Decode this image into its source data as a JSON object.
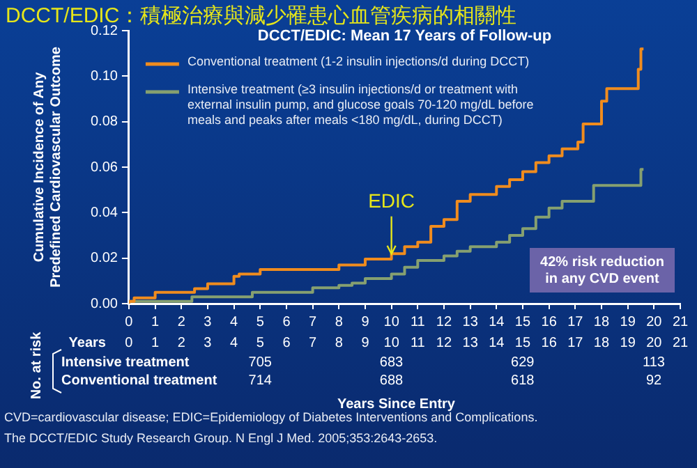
{
  "chart_data": {
    "type": "step",
    "title": "DCCT/EDIC：積極治療與減少罹患心血管疾病的相關性",
    "subtitle": "DCCT/EDIC: Mean 17 Years of Follow-up",
    "xlabel": "Years Since Entry",
    "ylabel": "Cumulative Incidence of Any Predefined Cardiovascular Outcome",
    "xlim": [
      0,
      21
    ],
    "xticks": [
      0,
      1,
      2,
      3,
      4,
      5,
      6,
      7,
      8,
      9,
      10,
      11,
      12,
      13,
      14,
      15,
      16,
      17,
      18,
      19,
      20,
      21
    ],
    "ylim": [
      0,
      0.12
    ],
    "yticks": [
      {
        "value": 0,
        "label": "0.00"
      },
      0.02,
      0.04,
      0.06,
      0.08,
      {
        "value": 0.1,
        "label": "0.10"
      },
      0.12
    ],
    "x2lim": [
      0,
      21
    ],
    "x2ticks": [
      0,
      1,
      2,
      3,
      4,
      5,
      6,
      7,
      8,
      9,
      10,
      11,
      12,
      13,
      14,
      15,
      16,
      17,
      18,
      19,
      20,
      21
    ],
    "grid": false,
    "legend": "top left",
    "marker": "none",
    "series": [
      {
        "name": "Conventional treatment (1-2 insulin injections/d during DCCT)",
        "color": "#f08c1e",
        "x": [
          0,
          0.2,
          1,
          2.5,
          3,
          4,
          4.2,
          5,
          8,
          9,
          10,
          10.5,
          11,
          11.5,
          12,
          12.5,
          13,
          14,
          14.5,
          15,
          15.5,
          16,
          16.5,
          17.1,
          17.3,
          18,
          18.2,
          18.5,
          19.4,
          19.5,
          19.6
        ],
        "values": [
          0,
          0.001,
          0.0025,
          0.005,
          0.0066,
          0.0087,
          0.012,
          0.013,
          0.015,
          0.017,
          0.0196,
          0.022,
          0.025,
          0.027,
          0.034,
          0.037,
          0.045,
          0.048,
          0.0515,
          0.0545,
          0.058,
          0.062,
          0.065,
          0.068,
          0.071,
          0.079,
          0.089,
          0.0945,
          0.0945,
          0.103,
          0.112
        ]
      },
      {
        "name": "Intensive treatment (≥3 insulin injections/d or treatment with external insulin pump, and glucose goals 70-120 mg/dL before meals and peaks after meals <180 mg/dL, during DCCT)",
        "color": "#86a070",
        "x": [
          0,
          2.4,
          4.7,
          7,
          8,
          8.5,
          9,
          10,
          10.5,
          11,
          12,
          12.5,
          13,
          14,
          14.5,
          15,
          15.5,
          16,
          16.5,
          17,
          17.7,
          17.8,
          19.5,
          19.6
        ],
        "values": [
          0,
          0.001,
          0.003,
          0.005,
          0.007,
          0.008,
          0.009,
          0.011,
          0.013,
          0.016,
          0.019,
          0.021,
          0.023,
          0.025,
          0.027,
          0.03,
          0.033,
          0.038,
          0.042,
          0.045,
          0.045,
          0.052,
          0.052,
          0.059
        ]
      }
    ],
    "annotations": [
      {
        "text": "EDIC",
        "x": 10,
        "y": 0.02
      },
      "42% risk reduction in any CVD event",
      "No. at risk",
      "Years",
      "Intensive treatment",
      "705",
      "683",
      "629",
      "113",
      "Conventional treatment",
      "714",
      "688",
      "618",
      "92",
      "CVD=cardiovascular disease; EDIC=Epidemiology of Diabetes Interventions and Complications.",
      "The DCCT/EDIC Study Research Group. N Engl J Med. 2005;353:2643-2653."
    ]
  }
}
